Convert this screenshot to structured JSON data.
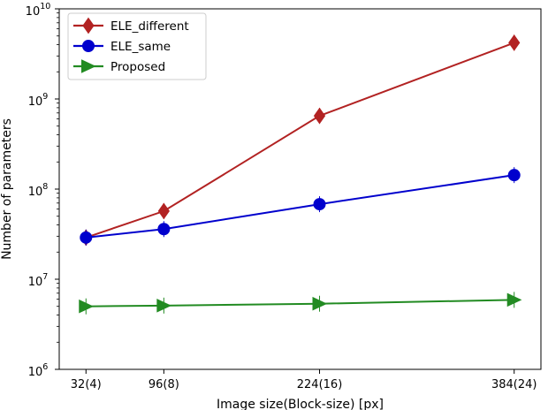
{
  "chart_data": {
    "type": "line",
    "xlabel": "Image size(Block-size)  [px]",
    "ylabel": "Number of parameters",
    "yscale": "log",
    "ylim": [
      1000000,
      10000000000
    ],
    "x": [
      32,
      96,
      224,
      384
    ],
    "xtick_labels": [
      "32(4)",
      "96(8)",
      "224(16)",
      "384(24)"
    ],
    "ytick_labels": [
      {
        "base": "10",
        "exp": "6"
      },
      {
        "base": "10",
        "exp": "7"
      },
      {
        "base": "10",
        "exp": "8"
      },
      {
        "base": "10",
        "exp": "9"
      },
      {
        "base": "10",
        "exp": "10"
      }
    ],
    "legend_position": "top-left",
    "grid": false,
    "series": [
      {
        "name": "ELE_different",
        "color": "#b22222",
        "marker": "thin-diamond",
        "values": [
          29000000,
          57000000,
          650000000,
          4200000000
        ]
      },
      {
        "name": "ELE_same",
        "color": "#0000cd",
        "marker": "circle",
        "values": [
          29000000,
          36000000,
          68000000,
          143000000
        ]
      },
      {
        "name": "Proposed",
        "color": "#228b22",
        "marker": "triangle-right",
        "values": [
          5000000,
          5100000,
          5350000,
          5900000
        ]
      }
    ]
  }
}
